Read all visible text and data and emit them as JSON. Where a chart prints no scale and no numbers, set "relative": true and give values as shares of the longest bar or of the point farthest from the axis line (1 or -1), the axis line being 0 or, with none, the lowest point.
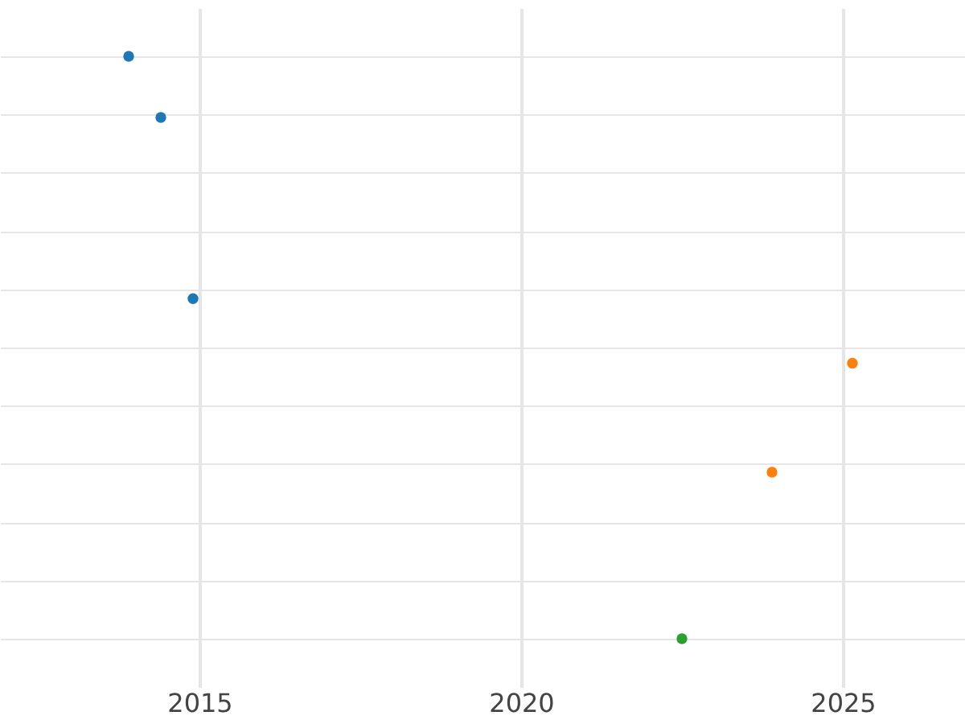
{
  "chart_data": {
    "type": "scatter",
    "relative": true,
    "xlim": [
      2011.9,
      2026.9
    ],
    "xticks": [
      2015,
      2020,
      2025
    ],
    "grid": true,
    "legend": false,
    "marker": "circle",
    "tick_labels": "x",
    "series": [
      {
        "color": "#1f77b4",
        "x": [
          2013.9,
          2014.4,
          2014.9
        ],
        "values": [
          1,
          0.895,
          0.584
        ]
      },
      {
        "color": "#ff7f0e",
        "x": [
          2023.9,
          2025.15
        ],
        "values": [
          0.286,
          0.473
        ]
      },
      {
        "color": "#2ca02c",
        "x": [
          2022.5
        ],
        "values": [
          0
        ]
      }
    ]
  }
}
